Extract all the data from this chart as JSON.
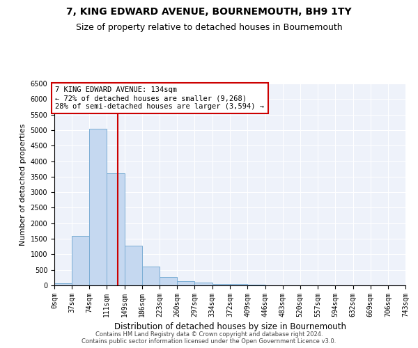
{
  "title": "7, KING EDWARD AVENUE, BOURNEMOUTH, BH9 1TY",
  "subtitle": "Size of property relative to detached houses in Bournemouth",
  "xlabel": "Distribution of detached houses by size in Bournemouth",
  "ylabel": "Number of detached properties",
  "footer_line1": "Contains HM Land Registry data © Crown copyright and database right 2024.",
  "footer_line2": "Contains public sector information licensed under the Open Government Licence v3.0.",
  "annotation_line1": "7 KING EDWARD AVENUE: 134sqm",
  "annotation_line2": "← 72% of detached houses are smaller (9,268)",
  "annotation_line3": "28% of semi-detached houses are larger (3,594) →",
  "bin_edges": [
    0,
    37,
    74,
    111,
    149,
    186,
    223,
    260,
    297,
    334,
    372,
    409,
    446,
    483,
    520,
    557,
    594,
    632,
    669,
    706,
    743
  ],
  "bar_values": [
    75,
    1600,
    5050,
    3600,
    1280,
    600,
    270,
    130,
    100,
    55,
    40,
    20,
    10,
    8,
    5,
    3,
    2,
    1,
    1,
    0
  ],
  "bar_color": "#c5d8f0",
  "bar_edge_color": "#7aadd4",
  "vline_color": "#cc0000",
  "vline_x": 134,
  "annotation_box_color": "#cc0000",
  "annotation_box_fill": "#ffffff",
  "ylim": [
    0,
    6500
  ],
  "yticks": [
    0,
    500,
    1000,
    1500,
    2000,
    2500,
    3000,
    3500,
    4000,
    4500,
    5000,
    5500,
    6000,
    6500
  ],
  "background_color": "#eef2fa",
  "title_fontsize": 10,
  "subtitle_fontsize": 9,
  "tick_label_fontsize": 7,
  "ylabel_fontsize": 8,
  "xlabel_fontsize": 8.5,
  "annotation_fontsize": 7.5,
  "footer_fontsize": 6
}
